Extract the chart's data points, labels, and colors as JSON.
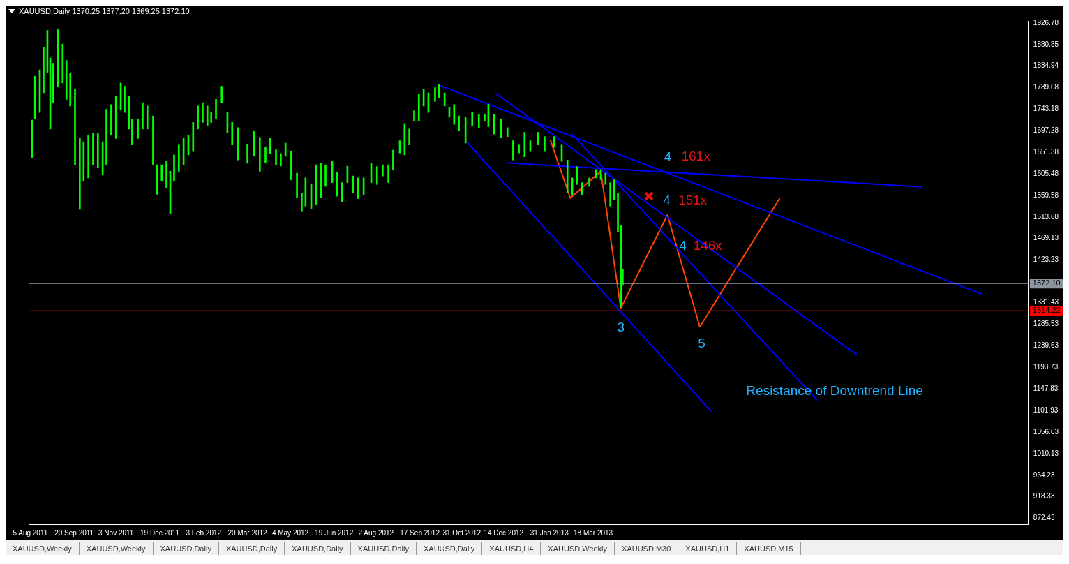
{
  "chart_data": {
    "type": "bar",
    "title": "XAUUSD,Daily  1370.25 1377.20 1369.25 1372.10",
    "marker": "none",
    "xlim": [
      "2011-08-04",
      "2014-06-18"
    ],
    "ylim": [
      860,
      1931
    ],
    "xticks": [
      {
        "value": "2011-08-05",
        "label": "5 Aug 2011"
      },
      {
        "value": "2011-09-20",
        "label": "20 Sep 2011"
      },
      {
        "value": "2011-11-03",
        "label": "3 Nov 2011"
      },
      {
        "value": "2011-12-19",
        "label": "19 Dec 2011"
      },
      {
        "value": "2012-02-03",
        "label": "3 Feb 2012"
      },
      {
        "value": "2012-03-20",
        "label": "20 Mar 2012"
      },
      {
        "value": "2012-05-04",
        "label": "4 May 2012"
      },
      {
        "value": "2012-06-19",
        "label": "19 Jun 2012"
      },
      {
        "value": "2012-08-02",
        "label": "2 Aug 2012"
      },
      {
        "value": "2012-09-17",
        "label": "17 Sep 2012"
      },
      {
        "value": "2012-10-31",
        "label": "31 Oct 2012"
      },
      {
        "value": "2012-12-14",
        "label": "14 Dec 2012"
      },
      {
        "value": "2013-01-31",
        "label": "31 Jan 2013"
      },
      {
        "value": "2013-03-18",
        "label": "18 Mar 2013"
      }
    ],
    "yticks": [
      1926.78,
      1880.85,
      1834.94,
      1789.08,
      1743.18,
      1697.28,
      1651.38,
      1605.48,
      1559.58,
      1513.68,
      1469.13,
      1423.23,
      1331.43,
      1285.53,
      1239.63,
      1193.73,
      1147.83,
      1101.93,
      1056.03,
      1010.13,
      964.23,
      918.33,
      872.43
    ],
    "series": [
      {
        "color": "#00ff00",
        "x": [
          "2011-08-07",
          "2011-08-10",
          "2011-08-15",
          "2011-08-19",
          "2011-08-23",
          "2011-08-26",
          "2011-08-29",
          "2011-09-03",
          "2011-09-08",
          "2011-09-12",
          "2011-09-16",
          "2011-09-21",
          "2011-09-26",
          "2011-09-30",
          "2011-10-05",
          "2011-10-10",
          "2011-10-15",
          "2011-10-20",
          "2011-10-24",
          "2011-10-29",
          "2011-11-03",
          "2011-11-08",
          "2011-11-12",
          "2011-11-17",
          "2011-11-20",
          "2011-11-26",
          "2011-12-01",
          "2011-12-06",
          "2011-12-12",
          "2011-12-16",
          "2011-12-21",
          "2011-12-26",
          "2011-12-30",
          "2012-01-03",
          "2012-01-08",
          "2012-01-13",
          "2012-01-18",
          "2012-01-23",
          "2012-01-28",
          "2012-02-02",
          "2012-02-07",
          "2012-02-11",
          "2012-02-16",
          "2012-02-22",
          "2012-02-28",
          "2012-03-04",
          "2012-03-10",
          "2012-03-20",
          "2012-03-27",
          "2012-04-02",
          "2012-04-08",
          "2012-04-13",
          "2012-04-19",
          "2012-04-24",
          "2012-04-29",
          "2012-05-05",
          "2012-05-11",
          "2012-05-16",
          "2012-05-20",
          "2012-05-26",
          "2012-05-31",
          "2012-06-05",
          "2012-06-10",
          "2012-06-17",
          "2012-06-22",
          "2012-06-27",
          "2012-07-03",
          "2012-07-09",
          "2012-07-14",
          "2012-07-20",
          "2012-07-28",
          "2012-08-03",
          "2012-08-09",
          "2012-08-15",
          "2012-08-20",
          "2012-08-27",
          "2012-09-01",
          "2012-09-06",
          "2012-09-11",
          "2012-09-16",
          "2012-09-21",
          "2012-09-26",
          "2012-10-03",
          "2012-10-07",
          "2012-10-13",
          "2012-10-18",
          "2012-10-23",
          "2012-10-28",
          "2012-11-04",
          "2012-11-11",
          "2012-11-18",
          "2012-11-24",
          "2012-11-28",
          "2012-12-04",
          "2012-12-11",
          "2012-12-18",
          "2012-12-24",
          "2012-12-30",
          "2013-01-05",
          "2013-01-11",
          "2013-01-19",
          "2013-01-26",
          "2013-02-05",
          "2013-02-13",
          "2013-02-19",
          "2013-02-24",
          "2013-03-01",
          "2013-03-06",
          "2013-03-14",
          "2013-03-21",
          "2013-03-26",
          "2013-03-31",
          "2013-04-05",
          "2013-04-09",
          "2013-04-13",
          "2013-04-16",
          "2013-04-18"
        ],
        "base": [
          1639,
          1722,
          1736,
          1778,
          1820,
          1701,
          1757,
          1792,
          1799,
          1764,
          1750,
          1625,
          1530,
          1590,
          1597,
          1625,
          1618,
          1604,
          1625,
          1688,
          1681,
          1743,
          1736,
          1701,
          1667,
          1681,
          1701,
          1701,
          1625,
          1562,
          1590,
          1576,
          1521,
          1590,
          1611,
          1625,
          1646,
          1653,
          1701,
          1715,
          1708,
          1715,
          1722,
          1757,
          1694,
          1667,
          1635,
          1628,
          1643,
          1611,
          1629,
          1649,
          1625,
          1622,
          1643,
          1593,
          1555,
          1525,
          1537,
          1532,
          1541,
          1555,
          1579,
          1587,
          1558,
          1546,
          1587,
          1565,
          1553,
          1560,
          1587,
          1583,
          1601,
          1587,
          1615,
          1650,
          1646,
          1667,
          1718,
          1718,
          1750,
          1736,
          1760,
          1768,
          1750,
          1726,
          1711,
          1697,
          1671,
          1708,
          1704,
          1718,
          1706,
          1690,
          1683,
          1685,
          1635,
          1650,
          1642,
          1653,
          1667,
          1653,
          1662,
          1632,
          1565,
          1560,
          1583,
          1560,
          1579,
          1597,
          1593,
          1583,
          1537,
          1551,
          1482,
          1322,
          1368
        ],
        "values": [
          81,
          91,
          91,
          97,
          91,
          151,
          84,
          121,
          83,
          83,
          70,
          160,
          151,
          84,
          91,
          67,
          74,
          70,
          118,
          65,
          90,
          56,
          56,
          70,
          55,
          41,
          56,
          49,
          104,
          63,
          35,
          56,
          90,
          56,
          56,
          56,
          42,
          62,
          49,
          42,
          42,
          21,
          42,
          35,
          42,
          48,
          69,
          41,
          54,
          72,
          33,
          32,
          32,
          27,
          28,
          60,
          52,
          40,
          60,
          51,
          84,
          74,
          46,
          45,
          51,
          41,
          35,
          36,
          44,
          37,
          42,
          38,
          24,
          38,
          41,
          26,
          67,
          34,
          22,
          57,
          35,
          42,
          29,
          28,
          28,
          21,
          42,
          32,
          55,
          28,
          28,
          15,
          48,
          42,
          39,
          19,
          41,
          17,
          52,
          23,
          27,
          32,
          23,
          35,
          70,
          37,
          38,
          27,
          18,
          18,
          22,
          24,
          50,
          42,
          83,
          174,
          34
        ]
      },
      {
        "type": "line",
        "color": "#0000ff",
        "x": [
          "2012-10-05",
          "2014-04-30"
        ],
        "values": [
          1796,
          1350
        ]
      },
      {
        "type": "line",
        "color": "#0000ff",
        "x": [
          "2012-12-05",
          "2013-12-20"
        ],
        "values": [
          1778,
          1220
        ]
      },
      {
        "type": "line",
        "color": "#0000ff",
        "x": [
          "2013-02-23",
          "2013-11-08"
        ],
        "values": [
          1692,
          1124
        ]
      },
      {
        "type": "line",
        "color": "#0000ff",
        "x": [
          "2012-11-05",
          "2013-07-20"
        ],
        "values": [
          1674,
          1100
        ]
      },
      {
        "type": "line",
        "color": "#0000ff",
        "x": [
          "2012-12-17",
          "2014-02-26"
        ],
        "values": [
          1629,
          1578
        ]
      },
      {
        "type": "line",
        "color": "#ff4500",
        "x": [
          "2013-02-01",
          "2013-02-22",
          "2013-03-26",
          "2013-04-16",
          "2013-06-04",
          "2013-07-08",
          "2013-09-30"
        ],
        "values": [
          1678,
          1554,
          1611,
          1320,
          1518,
          1280,
          1554
        ]
      }
    ],
    "ref_lines": [
      {
        "axis": "y",
        "value": 1372.1,
        "label": "1372.10",
        "color": "#8c96a0"
      },
      {
        "axis": "y",
        "value": 1314.22,
        "label": "1314.22",
        "color": "#ff0000"
      }
    ],
    "annotations": [
      "3",
      "4",
      "161x",
      "✖",
      "4",
      "151x",
      "4",
      "146x",
      "5",
      "Resistance of Downtrend Line",
      "XAUUSD,Weekly",
      "XAUUSD,Weekly",
      "XAUUSD,Daily",
      "XAUUSD,Daily",
      "XAUUSD,Daily",
      "XAUUSD,Daily",
      "XAUUSD,Daily",
      "XAUUSD,H4",
      "XAUUSD,Weekly",
      "XAUUSD,M30",
      "XAUUSD,H1",
      "XAUUSD,M15"
    ]
  }
}
